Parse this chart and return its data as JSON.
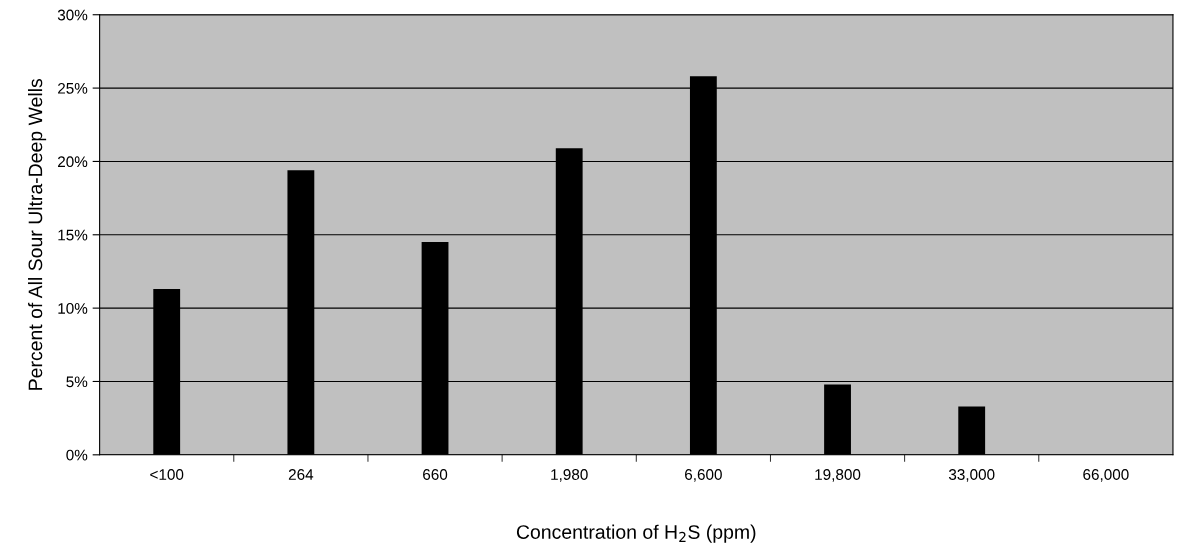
{
  "chart_data": {
    "type": "bar",
    "categories": [
      "<100",
      "264",
      "660",
      "1,980",
      "6,600",
      "19,800",
      "33,000",
      "66,000"
    ],
    "values": [
      11.3,
      19.4,
      14.5,
      20.9,
      25.8,
      4.8,
      3.3,
      0
    ],
    "color": "#000000",
    "xlabel": "Concentration of H$_{2}$S (ppm)",
    "ylabel": "Percent of All Sour Ultra-Deep Wells",
    "ylim": [
      0,
      30
    ],
    "yticks": [
      {
        "value": 0,
        "label": "0%"
      },
      {
        "value": 5,
        "label": "5%"
      },
      {
        "value": 10,
        "label": "10%"
      },
      {
        "value": 15,
        "label": "15%"
      },
      {
        "value": 20,
        "label": "20%"
      },
      {
        "value": 25,
        "label": "25%"
      },
      {
        "value": 30,
        "label": "30%"
      }
    ],
    "grid": "y"
  }
}
